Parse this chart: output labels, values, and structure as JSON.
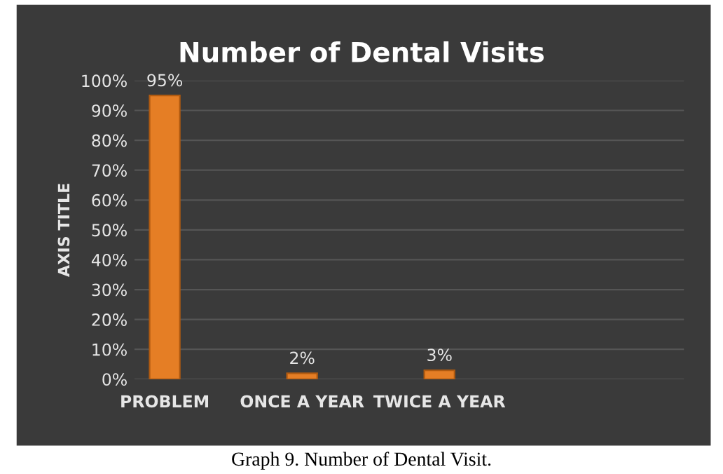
{
  "chart_data": {
    "type": "bar",
    "title": "Number of Dental Visits",
    "ylabel": "AXIS TITLE",
    "categories": [
      "PROBLEM",
      "ONCE A YEAR",
      "TWICE A YEAR"
    ],
    "values": [
      95,
      2,
      3
    ],
    "color": "#e57e25",
    "value_labels": [
      "95%",
      "2%",
      "3%"
    ],
    "ylim": [
      0,
      100
    ],
    "yticks": [
      {
        "value": 0,
        "label": "0%"
      },
      {
        "value": 10,
        "label": "10%"
      },
      {
        "value": 20,
        "label": "20%"
      },
      {
        "value": 30,
        "label": "30%"
      },
      {
        "value": 40,
        "label": "40%"
      },
      {
        "value": 50,
        "label": "50%"
      },
      {
        "value": 60,
        "label": "60%"
      },
      {
        "value": 70,
        "label": "70%"
      },
      {
        "value": 80,
        "label": "80%"
      },
      {
        "value": 90,
        "label": "90%"
      },
      {
        "value": 100,
        "label": "100%"
      }
    ],
    "grid": "y",
    "annotations": [
      "Graph 9. Number of Dental Visit."
    ]
  }
}
